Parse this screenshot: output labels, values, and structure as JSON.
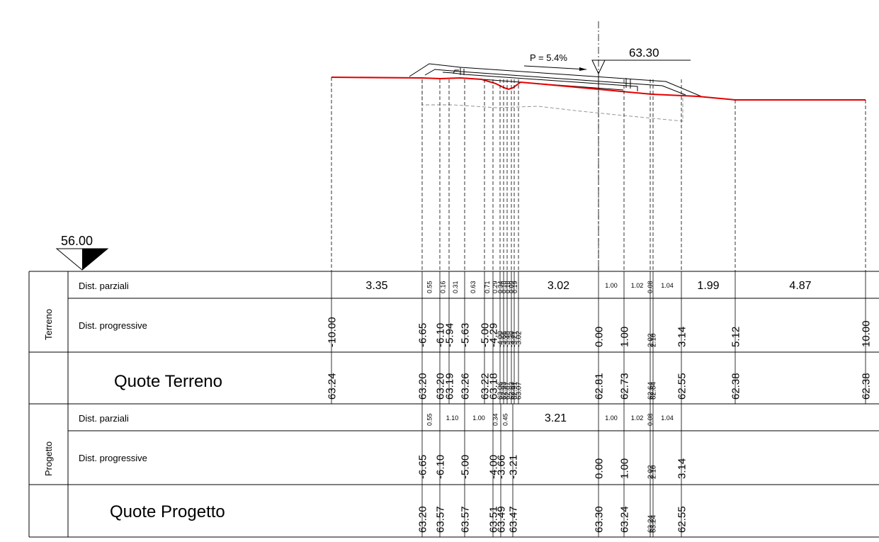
{
  "datum": {
    "label": "56.00"
  },
  "top_level": {
    "label": "63.30"
  },
  "slope": {
    "label": "P = 5.4%"
  },
  "sections": [
    {
      "title": "Terreno",
      "rows": [
        "Dist. parziali",
        "Dist. progressive",
        "Quote Terreno"
      ]
    },
    {
      "title": "Progetto",
      "rows": [
        "Dist. parziali",
        "Dist. progressive",
        "Quote Progetto"
      ]
    }
  ],
  "terreno": {
    "stations": [
      {
        "d": "-10.00",
        "q": "63.24"
      },
      {
        "d": "-6.65",
        "q": "63.20"
      },
      {
        "d": "-6.10",
        "q": "63.20"
      },
      {
        "d": "-5.94",
        "q": "63.19"
      },
      {
        "d": "-5.63",
        "q": "63.26"
      },
      {
        "d": "-5.00",
        "q": "63.22"
      },
      {
        "d": "-4.29",
        "q": "63.18"
      },
      {
        "d": "-4.00",
        "q": "63.06"
      },
      {
        "d": "-3.66",
        "q": "62.93"
      },
      {
        "d": "-3.48",
        "q": "62.87"
      },
      {
        "d": "-3.30",
        "q": "62.83"
      },
      {
        "d": "-3.21",
        "q": "62.91"
      },
      {
        "d": "-3.02",
        "q": "63.07"
      },
      {
        "d": "0.00",
        "q": "62.81"
      },
      {
        "d": "1.00",
        "q": "62.73"
      },
      {
        "d": "2.02",
        "q": "62.64"
      },
      {
        "d": "2.10",
        "q": "62.64"
      },
      {
        "d": "3.14",
        "q": "62.55"
      },
      {
        "d": "5.12",
        "q": "62.38"
      },
      {
        "d": "10.00",
        "q": "62.38"
      }
    ],
    "partials": [
      {
        "v": "3.35",
        "big": true
      },
      {
        "v": "0.55"
      },
      {
        "v": "0.16"
      },
      {
        "v": "0.31"
      },
      {
        "v": "0.63"
      },
      {
        "v": "0.71"
      },
      {
        "v": "0.29"
      },
      {
        "v": "0.34"
      },
      {
        "v": "0.18"
      },
      {
        "v": "0.18"
      },
      {
        "v": "0.09"
      },
      {
        "v": "0.19"
      },
      {
        "v": "3.02",
        "big": true
      },
      {
        "v": "1.00"
      },
      {
        "v": "1.02"
      },
      {
        "v": "0.08"
      },
      {
        "v": "1.04"
      },
      {
        "v": "1.99",
        "big": true
      },
      {
        "v": "4.87",
        "big": true
      }
    ]
  },
  "progetto": {
    "stations": [
      {
        "d": "-6.65",
        "q": "63.20"
      },
      {
        "d": "-6.10",
        "q": "63.57"
      },
      {
        "d": "-5.00",
        "q": "63.57"
      },
      {
        "d": "-4.00",
        "q": "63.51"
      },
      {
        "d": "-3.66",
        "q": "63.49"
      },
      {
        "d": "-3.21",
        "q": "63.47"
      },
      {
        "d": "0.00",
        "q": "63.30"
      },
      {
        "d": "1.00",
        "q": "63.24"
      },
      {
        "d": "2.02",
        "q": "63.24"
      },
      {
        "d": "2.10",
        "q": "63.24"
      },
      {
        "d": "3.14",
        "q": "62.55"
      }
    ],
    "partials": [
      {
        "v": "0.55"
      },
      {
        "v": "1.10"
      },
      {
        "v": "1.00"
      },
      {
        "v": "0.34"
      },
      {
        "v": "0.45"
      },
      {
        "v": "3.21",
        "big": true
      },
      {
        "v": "1.00"
      },
      {
        "v": "1.02"
      },
      {
        "v": "0.08"
      },
      {
        "v": "1.04"
      }
    ]
  },
  "colors": {
    "ground_line": "#e30000",
    "ink": "#000000",
    "hidden": "#8a8a8a"
  }
}
